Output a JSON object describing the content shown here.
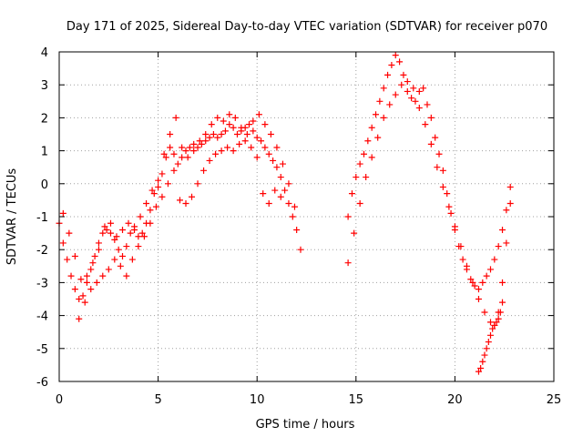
{
  "chart_data": {
    "type": "scatter",
    "title": "Day 171 of 2025, Sidereal Day-to-day VTEC variation (SDTVAR) for receiver p070",
    "xlabel": "GPS time / hours",
    "ylabel": "SDTVAR / TECUs",
    "xlim": [
      0,
      25
    ],
    "ylim": [
      -6,
      4
    ],
    "xticks": [
      0,
      5,
      10,
      15,
      20,
      25
    ],
    "yticks": [
      -6,
      -5,
      -4,
      -3,
      -2,
      -1,
      0,
      1,
      2,
      3,
      4
    ],
    "grid": true,
    "marker": "+",
    "color": "#ff0000",
    "series": [
      {
        "name": "segment-1",
        "x": [
          0.0,
          0.2,
          0.4,
          0.6,
          0.8,
          1.0,
          1.2,
          1.4,
          1.6,
          1.8,
          2.0,
          2.2,
          2.4,
          2.6,
          2.8,
          3.0,
          3.2,
          3.4,
          3.6,
          3.8,
          4.0,
          4.2,
          4.4,
          4.6,
          4.8,
          5.0,
          5.2,
          5.4,
          5.6,
          5.8,
          6.0,
          6.2,
          6.4,
          6.6,
          6.8,
          7.0,
          7.2,
          7.4,
          7.6,
          7.8,
          8.0,
          8.2,
          8.4,
          8.6,
          8.8,
          9.0,
          9.2,
          9.4,
          9.6,
          9.8,
          10.0,
          10.2,
          10.4,
          10.6,
          10.8,
          11.0,
          11.2,
          11.4,
          11.6,
          11.8,
          12.0,
          12.2
        ],
        "y": [
          -1.2,
          -1.8,
          -2.3,
          -2.8,
          -3.2,
          -3.5,
          -3.4,
          -3.0,
          -2.6,
          -2.2,
          -1.8,
          -1.5,
          -1.4,
          -1.5,
          -1.7,
          -2.0,
          -2.2,
          -1.9,
          -1.5,
          -1.4,
          -1.6,
          -1.5,
          -1.2,
          -0.8,
          -0.3,
          -0.1,
          0.3,
          0.8,
          1.1,
          0.9,
          0.6,
          0.8,
          1.0,
          1.1,
          1.2,
          1.1,
          1.2,
          1.3,
          1.4,
          1.5,
          1.4,
          1.5,
          1.6,
          1.8,
          1.7,
          1.5,
          1.6,
          1.7,
          1.8,
          1.6,
          1.4,
          1.3,
          1.1,
          0.9,
          0.7,
          0.5,
          0.2,
          -0.2,
          -0.6,
          -1.0,
          -1.4,
          -2.0
        ]
      },
      {
        "name": "segment-1-upper-branch",
        "x": [
          0.2,
          0.5,
          0.8,
          1.1,
          1.4,
          1.7,
          2.0,
          2.3,
          2.6,
          2.9,
          3.2,
          3.5,
          3.8,
          4.1,
          4.4,
          4.7,
          5.0,
          5.3,
          5.6,
          5.9,
          6.2,
          6.5,
          6.8,
          7.1,
          7.4,
          7.7,
          8.0,
          8.3,
          8.6,
          8.9,
          9.2,
          9.5,
          9.8,
          10.1,
          10.4,
          10.7,
          11.0,
          11.3,
          11.6,
          11.9
        ],
        "y": [
          -0.9,
          -1.5,
          -2.2,
          -2.9,
          -2.8,
          -2.4,
          -2.0,
          -1.3,
          -1.2,
          -1.6,
          -1.4,
          -1.2,
          -1.3,
          -1.0,
          -0.6,
          -0.2,
          0.1,
          0.9,
          1.5,
          2.0,
          1.1,
          0.8,
          1.0,
          1.3,
          1.5,
          1.8,
          2.0,
          1.9,
          2.1,
          2.0,
          1.7,
          1.5,
          1.9,
          2.1,
          1.8,
          1.5,
          1.1,
          0.6,
          0.0,
          -0.7
        ]
      },
      {
        "name": "segment-1-lower-branch",
        "x": [
          1.0,
          1.3,
          1.6,
          1.9,
          2.2,
          2.5,
          2.8,
          3.1,
          3.4,
          3.7,
          4.0,
          4.3,
          4.6,
          4.9,
          5.2,
          5.5,
          5.8,
          6.1,
          6.4,
          6.7,
          7.0,
          7.3,
          7.6,
          7.9,
          8.2,
          8.5,
          8.8,
          9.1,
          9.4,
          9.7,
          10.0,
          10.3,
          10.6,
          10.9,
          11.2
        ],
        "y": [
          -4.1,
          -3.6,
          -3.2,
          -3.0,
          -2.8,
          -2.6,
          -2.3,
          -2.5,
          -2.8,
          -2.3,
          -1.9,
          -1.6,
          -1.2,
          -0.7,
          -0.4,
          0.0,
          0.4,
          -0.5,
          -0.6,
          -0.4,
          0.0,
          0.4,
          0.7,
          0.9,
          1.0,
          1.1,
          1.0,
          1.2,
          1.3,
          1.1,
          0.8,
          -0.3,
          -0.6,
          -0.2,
          -0.4
        ]
      },
      {
        "name": "segment-2",
        "x": [
          14.6,
          14.8,
          15.0,
          15.2,
          15.4,
          15.6,
          15.8,
          16.0,
          16.2,
          16.4,
          16.6,
          16.8,
          17.0,
          17.2,
          17.4,
          17.6,
          17.8,
          18.0,
          18.2,
          18.4,
          18.6,
          18.8,
          19.0,
          19.2,
          19.4,
          19.6,
          19.8,
          20.0,
          20.2,
          20.4,
          20.6,
          20.8,
          21.0,
          21.2,
          21.4,
          21.6,
          21.8,
          22.0,
          22.2,
          22.4,
          22.6,
          22.8
        ],
        "y": [
          -1.0,
          -0.3,
          0.2,
          0.6,
          0.9,
          1.3,
          1.7,
          2.1,
          2.5,
          2.9,
          3.3,
          3.6,
          3.9,
          3.7,
          3.3,
          2.8,
          2.6,
          2.5,
          2.8,
          2.9,
          2.4,
          2.0,
          1.4,
          0.9,
          0.4,
          -0.3,
          -0.9,
          -1.4,
          -1.9,
          -2.3,
          -2.6,
          -2.9,
          -3.1,
          -3.2,
          -3.0,
          -2.8,
          -2.6,
          -2.3,
          -1.9,
          -1.4,
          -0.8,
          -0.1
        ]
      },
      {
        "name": "segment-2-lower-branch",
        "x": [
          14.6,
          14.9,
          15.2,
          15.5,
          15.8,
          16.1,
          16.4,
          16.7,
          17.0,
          17.3,
          17.6,
          17.9,
          18.2,
          18.5,
          18.8,
          19.1,
          19.4,
          19.7,
          20.0,
          20.3,
          20.6,
          20.9,
          21.2,
          21.5,
          21.8,
          22.0,
          22.2,
          22.4,
          22.6,
          22.8
        ],
        "y": [
          -2.4,
          -1.5,
          -0.6,
          0.2,
          0.8,
          1.4,
          2.0,
          2.4,
          2.7,
          3.0,
          3.1,
          2.9,
          2.3,
          1.8,
          1.2,
          0.5,
          -0.1,
          -0.7,
          -1.3,
          -1.9,
          -2.5,
          -3.0,
          -3.5,
          -3.9,
          -4.2,
          -4.3,
          -3.9,
          -3.0,
          -1.8,
          -0.6
        ]
      },
      {
        "name": "segment-2-dip",
        "x": [
          21.2,
          21.3,
          21.4,
          21.5,
          21.6,
          21.7,
          21.8,
          21.9,
          22.0,
          22.1,
          22.2,
          22.3,
          22.4
        ],
        "y": [
          -5.7,
          -5.6,
          -5.4,
          -5.2,
          -5.0,
          -4.8,
          -4.6,
          -4.4,
          -4.3,
          -4.2,
          -4.1,
          -3.9,
          -3.6
        ]
      }
    ]
  }
}
